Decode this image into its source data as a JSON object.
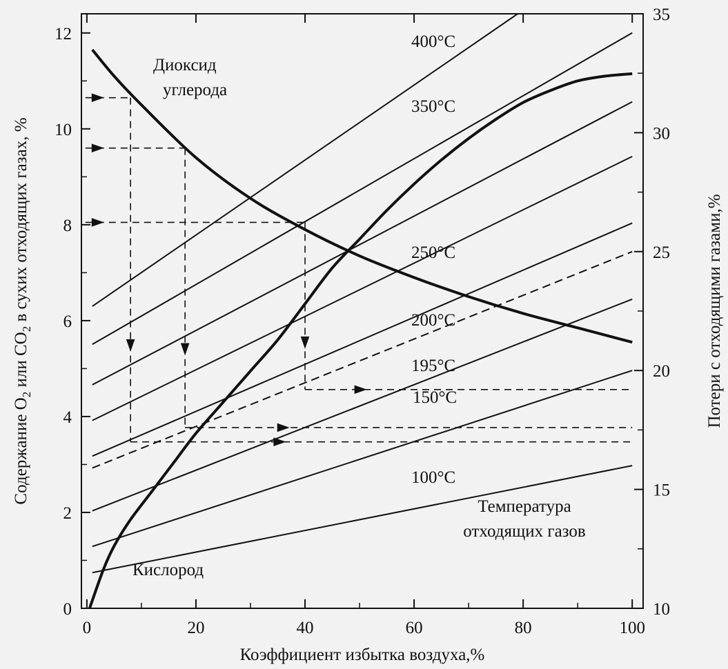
{
  "chart_data": {
    "type": "line",
    "xlabel": "Коэффициент избытка воздуха,%",
    "ylabel_left_parts": [
      "Содержание O",
      "2",
      " или CO",
      "2",
      " в сухих отходящих газах, %"
    ],
    "ylabel_right": "Потери с отходящими газами,%",
    "x_range": [
      -1,
      102
    ],
    "y_left_range": [
      0,
      12.4
    ],
    "y_right_range": [
      10,
      35
    ],
    "x_ticks": [
      "0",
      "20",
      "40",
      "60",
      "80",
      "100"
    ],
    "x_tick_values": [
      0,
      20,
      40,
      60,
      80,
      100
    ],
    "y_left_ticks": [
      "0",
      "2",
      "4",
      "6",
      "8",
      "10",
      "12"
    ],
    "y_left_tick_values": [
      0,
      2,
      4,
      6,
      8,
      10,
      12
    ],
    "y_right_ticks": [
      "10",
      "15",
      "20",
      "25",
      "30",
      "35"
    ],
    "y_right_tick_values": [
      10,
      15,
      20,
      25,
      30,
      35
    ],
    "grid": false,
    "annotations": {
      "co2": [
        "Диоксид",
        "углерода"
      ],
      "o2": "Кислород",
      "temp_title": [
        "Температура",
        "отходящих газов"
      ]
    },
    "series_o2_co2": [
      {
        "name": "Диоксид углерода",
        "axis": "left",
        "points": [
          [
            1,
            11.65
          ],
          [
            5,
            11.1
          ],
          [
            10,
            10.5
          ],
          [
            20,
            9.4
          ],
          [
            30,
            8.55
          ],
          [
            40,
            7.9
          ],
          [
            50,
            7.35
          ],
          [
            60,
            6.9
          ],
          [
            70,
            6.5
          ],
          [
            80,
            6.15
          ],
          [
            90,
            5.85
          ],
          [
            100,
            5.55
          ]
        ]
      },
      {
        "name": "Кислород",
        "axis": "left",
        "points": [
          [
            0.5,
            0
          ],
          [
            3,
            0.8
          ],
          [
            5,
            1.3
          ],
          [
            8,
            1.85
          ],
          [
            12,
            2.45
          ],
          [
            16,
            3.05
          ],
          [
            20,
            3.65
          ],
          [
            25,
            4.3
          ],
          [
            30,
            4.95
          ],
          [
            35,
            5.6
          ],
          [
            40,
            6.35
          ],
          [
            45,
            7.1
          ],
          [
            50,
            7.7
          ],
          [
            55,
            8.3
          ],
          [
            60,
            8.85
          ],
          [
            65,
            9.35
          ],
          [
            70,
            9.8
          ],
          [
            75,
            10.2
          ],
          [
            80,
            10.55
          ],
          [
            85,
            10.8
          ],
          [
            90,
            11.0
          ],
          [
            95,
            11.1
          ],
          [
            100,
            11.15
          ]
        ]
      }
    ],
    "temperature_lines": [
      {
        "label": "400°C",
        "axis": "right",
        "x": [
          1,
          79
        ],
        "y": [
          22.7,
          35.0
        ]
      },
      {
        "label": "350°C",
        "axis": "right",
        "x": [
          1,
          100
        ],
        "y": [
          21.1,
          34.2
        ]
      },
      {
        "label": "",
        "axis": "right",
        "x": [
          1,
          100
        ],
        "y": [
          19.4,
          31.3
        ]
      },
      {
        "label": "250°C",
        "axis": "right",
        "x": [
          1,
          100
        ],
        "y": [
          17.9,
          29.0
        ]
      },
      {
        "label": "200°C",
        "axis": "right",
        "x": [
          1,
          100
        ],
        "y": [
          16.4,
          26.2
        ]
      },
      {
        "label": "195°C",
        "axis": "right",
        "x": [
          1,
          100
        ],
        "y": [
          15.9,
          25.0
        ],
        "dashed": true
      },
      {
        "label": "150°C",
        "axis": "right",
        "x": [
          1,
          100
        ],
        "y": [
          14.1,
          23.0
        ]
      },
      {
        "label": "100°C",
        "axis": "right",
        "x": [
          1,
          100
        ],
        "y": [
          12.6,
          20.0
        ]
      },
      {
        "label": "",
        "axis": "right",
        "x": [
          1,
          100
        ],
        "y": [
          11.5,
          16.0
        ]
      }
    ],
    "guide_lines": [
      {
        "arrow_x": 1,
        "y_left": 10.65,
        "x_drop": 8,
        "y_end_right": 17.0,
        "x_end": 100
      },
      {
        "arrow_x": 1,
        "y_left": 9.6,
        "x_drop": 18,
        "y_end_right": 17.6,
        "x_end": 100
      },
      {
        "arrow_x": 1,
        "y_left": 8.05,
        "x_drop": 40,
        "y_end_right": 19.2,
        "x_end": 100
      }
    ]
  }
}
